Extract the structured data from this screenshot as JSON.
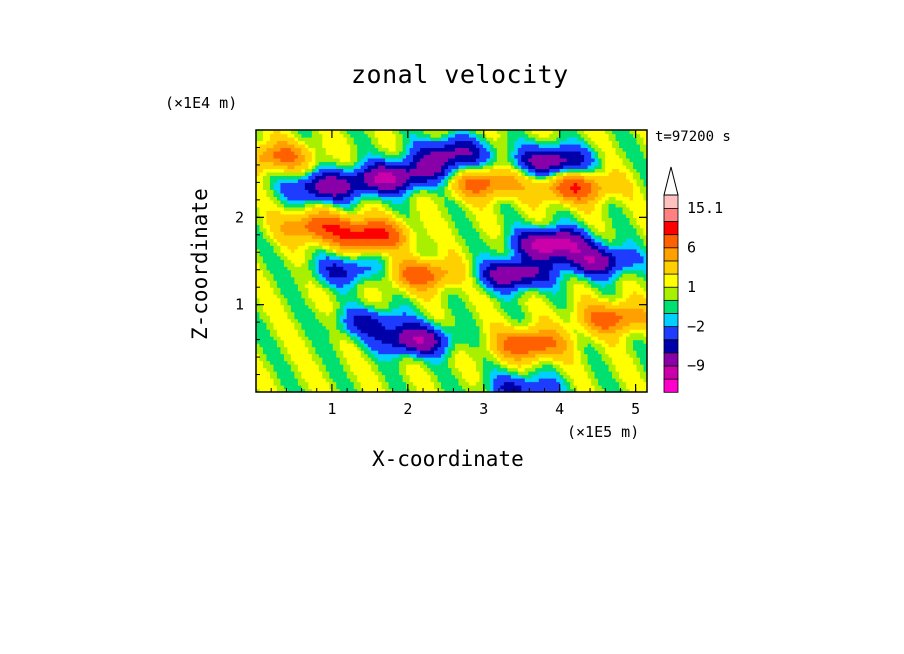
{
  "chart_data": {
    "type": "heatmap",
    "title": "zonal velocity",
    "xlabel": "X-coordinate",
    "ylabel": "Z-coordinate",
    "x_unit": "(×1E5 m)",
    "y_unit": "(×1E4 m)",
    "time_label": "t=97200 s",
    "xlim": [
      0,
      5.15
    ],
    "ylim": [
      0,
      3.0
    ],
    "x_ticks": [
      "1",
      "2",
      "3",
      "4",
      "5"
    ],
    "y_ticks": [
      "1",
      "2"
    ],
    "x_tick_values": [
      1,
      2,
      3,
      4,
      5
    ],
    "y_tick_values": [
      1,
      2
    ],
    "colorbar": {
      "labels": [
        {
          "text": "15.1",
          "value": 15.1
        },
        {
          "text": "6",
          "value": 6
        },
        {
          "text": "1",
          "value": 1
        },
        {
          "text": "−2",
          "value": -2
        },
        {
          "text": "−9",
          "value": -9
        }
      ],
      "levels": [
        -15,
        -12,
        -9,
        -6,
        -4,
        -2,
        -1,
        0,
        1,
        2,
        4,
        6,
        9,
        12,
        15.1
      ],
      "colors": [
        "#ff00cc",
        "#cc00aa",
        "#8a00a8",
        "#0000a8",
        "#1e3cff",
        "#00d0ff",
        "#00e070",
        "#a8f000",
        "#ffff00",
        "#ffd000",
        "#ffa000",
        "#ff6000",
        "#ff0000",
        "#ff8080",
        "#ffc0c0"
      ],
      "extend_top": true
    },
    "features": [
      {
        "x": 0.9,
        "z": 2.35,
        "value": -8
      },
      {
        "x": 1.7,
        "z": 2.45,
        "value": -9
      },
      {
        "x": 2.3,
        "z": 2.55,
        "value": -5
      },
      {
        "x": 3.9,
        "z": 2.65,
        "value": -9
      },
      {
        "x": 2.6,
        "z": 2.75,
        "value": -7
      },
      {
        "x": 1.5,
        "z": 1.8,
        "value": 10
      },
      {
        "x": 0.8,
        "z": 1.9,
        "value": 7
      },
      {
        "x": 3.9,
        "z": 1.7,
        "value": -12
      },
      {
        "x": 4.5,
        "z": 1.5,
        "value": -8
      },
      {
        "x": 3.4,
        "z": 1.35,
        "value": -9
      },
      {
        "x": 4.2,
        "z": 2.35,
        "value": 8
      },
      {
        "x": 3.0,
        "z": 2.4,
        "value": 7
      },
      {
        "x": 2.2,
        "z": 1.35,
        "value": 7
      },
      {
        "x": 1.2,
        "z": 1.4,
        "value": -5
      },
      {
        "x": 2.1,
        "z": 0.6,
        "value": -9
      },
      {
        "x": 1.5,
        "z": 0.8,
        "value": -5
      },
      {
        "x": 3.6,
        "z": 0.55,
        "value": 8
      },
      {
        "x": 4.7,
        "z": 0.85,
        "value": 7
      },
      {
        "x": 0.3,
        "z": 2.7,
        "value": 6
      },
      {
        "x": 3.5,
        "z": 0.05,
        "value": -5
      }
    ]
  }
}
